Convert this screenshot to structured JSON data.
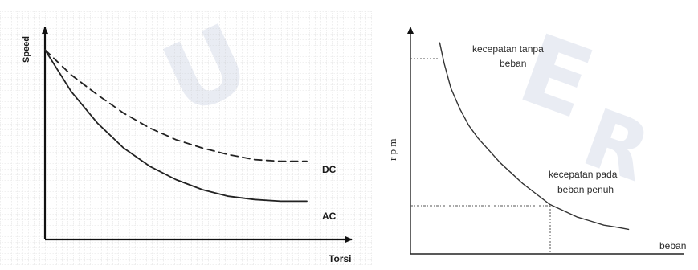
{
  "chart_data": [
    {
      "type": "line",
      "title": "",
      "xlabel": "Torsi",
      "ylabel": "Speed",
      "grid": true,
      "series": [
        {
          "name": "DC",
          "style": "dashed",
          "color": "#222222",
          "x": [
            0,
            0.1,
            0.2,
            0.3,
            0.4,
            0.5,
            0.6,
            0.7,
            0.8,
            0.9,
            1.0
          ],
          "y": [
            1.0,
            0.85,
            0.73,
            0.62,
            0.53,
            0.46,
            0.41,
            0.37,
            0.34,
            0.33,
            0.33
          ]
        },
        {
          "name": "AC",
          "style": "solid",
          "color": "#222222",
          "x": [
            0,
            0.1,
            0.2,
            0.3,
            0.4,
            0.5,
            0.6,
            0.7,
            0.8,
            0.9,
            1.0
          ],
          "y": [
            1.0,
            0.75,
            0.56,
            0.41,
            0.3,
            0.22,
            0.16,
            0.12,
            0.1,
            0.09,
            0.09
          ]
        }
      ]
    },
    {
      "type": "line",
      "title": "",
      "xlabel": "beban",
      "ylabel": "r p m",
      "grid": false,
      "series": [
        {
          "name": "",
          "style": "solid",
          "color": "#333333",
          "x": [
            0.13,
            0.15,
            0.18,
            0.22,
            0.26,
            0.3,
            0.35,
            0.4,
            0.45,
            0.5,
            0.56,
            0.62,
            0.68,
            0.74,
            0.8,
            0.86,
            0.92,
            0.97
          ],
          "y": [
            0.98,
            0.88,
            0.76,
            0.66,
            0.58,
            0.52,
            0.46,
            0.4,
            0.35,
            0.3,
            0.25,
            0.2,
            0.17,
            0.14,
            0.12,
            0.1,
            0.09,
            0.08
          ]
        }
      ],
      "annotations": [
        "kecepatan tanpa\nbeban",
        "kecepatan pada\nbeban penuh"
      ]
    }
  ],
  "left": {
    "y_label": "Speed",
    "x_label": "Torsi",
    "dc_label": "DC",
    "ac_label": "AC"
  },
  "right": {
    "y_label": "r p m",
    "x_label": "beban",
    "no_load_line1": "kecepatan tanpa",
    "no_load_line2": "beban",
    "full_load_line1": "kecepatan pada",
    "full_load_line2": "beban penuh"
  }
}
